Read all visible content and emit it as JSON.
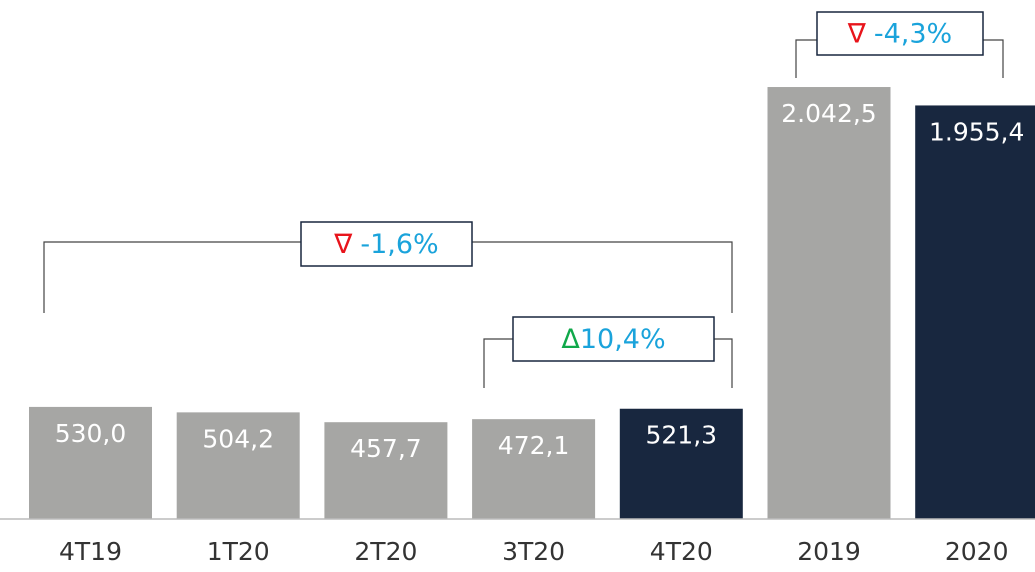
{
  "chart_data": {
    "type": "bar",
    "categories": [
      "4T19",
      "1T20",
      "2T20",
      "3T20",
      "4T20",
      "2019",
      "2020"
    ],
    "values": [
      530.0,
      504.2,
      457.7,
      472.1,
      521.3,
      2042.5,
      1955.4
    ],
    "value_labels": [
      "530,0",
      "504,2",
      "457,7",
      "472,1",
      "521,3",
      "2.042,5",
      "1.955,4"
    ],
    "colors": [
      "#a6a6a4",
      "#a6a6a4",
      "#a6a6a4",
      "#a6a6a4",
      "#18273f",
      "#a6a6a4",
      "#18273f"
    ],
    "ylim": [
      0,
      2454
    ],
    "annotations": [
      {
        "symbol": "∇",
        "symbol_color": "#e8141b",
        "text": "-1,6%",
        "text_color": "#1aa3db"
      },
      {
        "symbol": "Δ",
        "symbol_color": "#10a84a",
        "text": "10,4%",
        "text_color": "#1aa3db"
      },
      {
        "symbol": "∇",
        "symbol_color": "#e8141b",
        "text": "-4,3%",
        "text_color": "#1aa3db"
      }
    ]
  }
}
